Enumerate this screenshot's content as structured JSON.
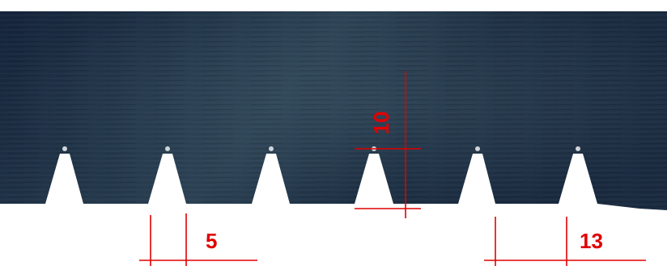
{
  "photo": {
    "subject": "perforated-metal-strip",
    "strip_color": "#1d2c3f",
    "background_color": "#ffffff",
    "annotation_color": "#e00000"
  },
  "dimensions": {
    "height_label": "10",
    "gap_label": "5",
    "pitch_label": "13"
  }
}
